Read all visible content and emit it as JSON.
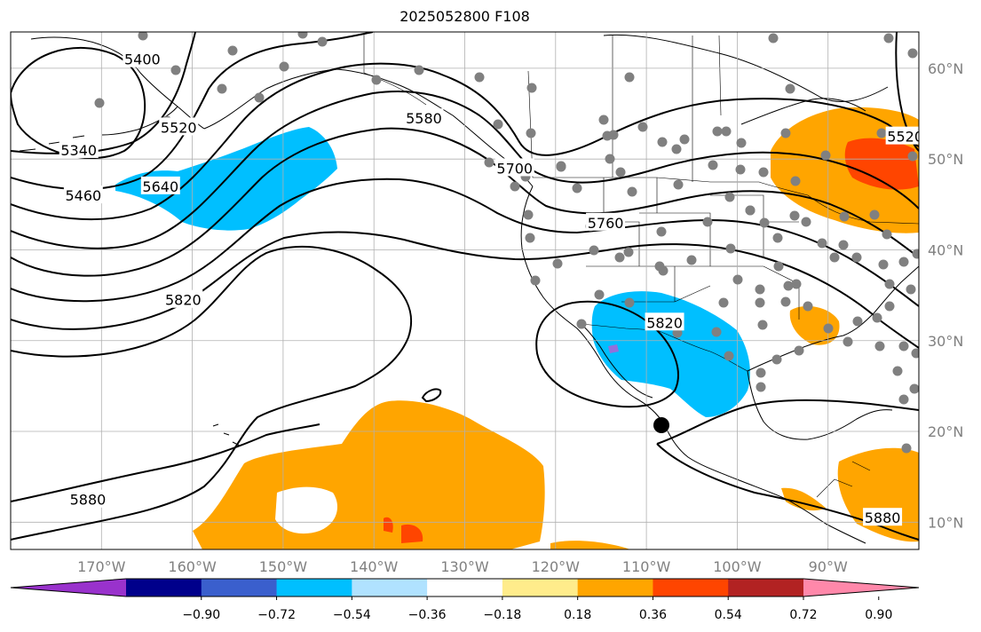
{
  "title": "2025052800 F108",
  "map": {
    "projection": "PlateCarree",
    "lon_range": [
      -180,
      -80
    ],
    "lat_range": [
      7,
      64
    ],
    "lon_ticks": [
      {
        "value": -170,
        "label": "170°W"
      },
      {
        "value": -160,
        "label": "160°W"
      },
      {
        "value": -150,
        "label": "150°W"
      },
      {
        "value": -140,
        "label": "140°W"
      },
      {
        "value": -130,
        "label": "130°W"
      },
      {
        "value": -120,
        "label": "120°W"
      },
      {
        "value": -110,
        "label": "110°W"
      },
      {
        "value": -100,
        "label": "100°W"
      },
      {
        "value": -90,
        "label": "90°W"
      }
    ],
    "lat_ticks": [
      {
        "value": 60,
        "label": "60°N"
      },
      {
        "value": 50,
        "label": "50°N"
      },
      {
        "value": 40,
        "label": "40°N"
      },
      {
        "value": 30,
        "label": "30°N"
      },
      {
        "value": 20,
        "label": "20°N"
      },
      {
        "value": 10,
        "label": "10°N"
      }
    ],
    "contour_labels": [
      {
        "text": "5400",
        "lon": -165.5,
        "lat": 61
      },
      {
        "text": "5340",
        "lon": -172.5,
        "lat": 51
      },
      {
        "text": "5460",
        "lon": -172,
        "lat": 46
      },
      {
        "text": "5520",
        "lon": -161.5,
        "lat": 53.5
      },
      {
        "text": "5640",
        "lon": -163.5,
        "lat": 47
      },
      {
        "text": "5580",
        "lon": -134.5,
        "lat": 54.5
      },
      {
        "text": "5700",
        "lon": -124.5,
        "lat": 49
      },
      {
        "text": "5760",
        "lon": -114.5,
        "lat": 43
      },
      {
        "text": "5820",
        "lon": -161,
        "lat": 34.5
      },
      {
        "text": "5880",
        "lon": -171.5,
        "lat": 12.5
      },
      {
        "text": "5820",
        "lon": -108,
        "lat": 32
      },
      {
        "text": "5880",
        "lon": -84,
        "lat": 10.5
      },
      {
        "text": "5520",
        "lon": -81.5,
        "lat": 52.5
      }
    ],
    "anomaly_fill_colors": {
      "orange": "#ffa500",
      "red_orange": "#ff4500",
      "cyan": "#00bfff",
      "purple": "#9370db"
    },
    "station_color": "#808080",
    "marker": {
      "lon": -107,
      "lat": 21.5,
      "color": "#000000"
    }
  },
  "colorbar": {
    "colors": [
      "#9932cc",
      "#00008b",
      "#3a5fcd",
      "#00bfff",
      "#b0e2ff",
      "#ffffff",
      "#ffec8b",
      "#ffa500",
      "#ff4500",
      "#b22222",
      "#ff88aa"
    ],
    "tick_values": [
      "−0.90",
      "−0.72",
      "−0.54",
      "−0.36",
      "−0.18",
      "0.18",
      "0.36",
      "0.54",
      "0.72",
      "0.90"
    ]
  }
}
